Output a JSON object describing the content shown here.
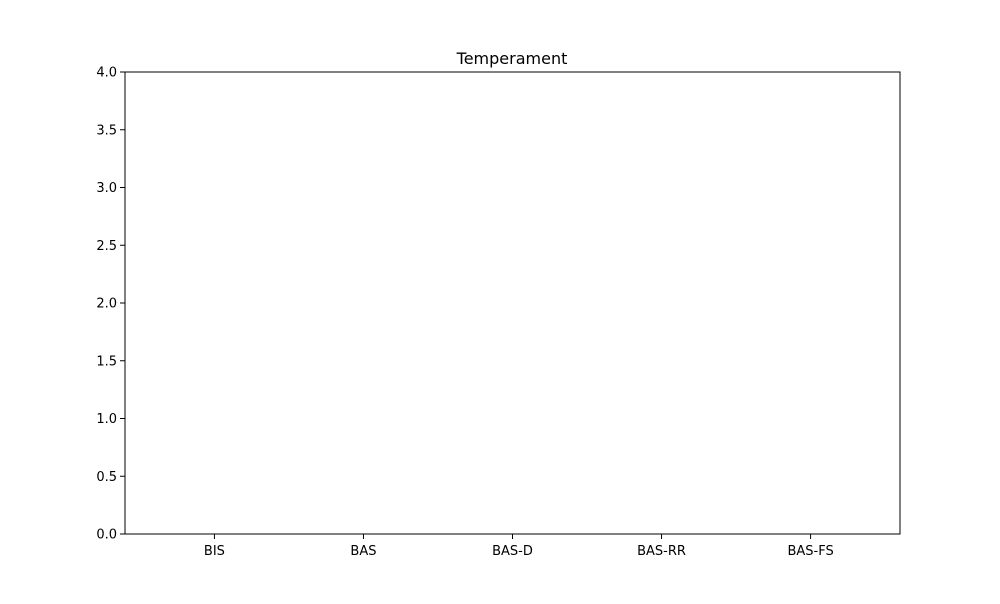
{
  "chart_data": {
    "type": "bar",
    "title": "Temperament",
    "categories": [
      "BIS",
      "BAS",
      "BAS-D",
      "BAS-RR",
      "BAS-FS"
    ],
    "values": [
      0,
      0,
      0,
      0,
      0
    ],
    "xlabel": "",
    "ylabel": "",
    "ylim": [
      0,
      4.0
    ],
    "yticks": [
      0.0,
      0.5,
      1.0,
      1.5,
      2.0,
      2.5,
      3.0,
      3.5,
      4.0
    ],
    "ytick_labels": [
      "0.0",
      "0.5",
      "1.0",
      "1.5",
      "2.0",
      "2.5",
      "3.0",
      "3.5",
      "4.0"
    ],
    "grid": false,
    "bar_color": "#1f77b4"
  }
}
